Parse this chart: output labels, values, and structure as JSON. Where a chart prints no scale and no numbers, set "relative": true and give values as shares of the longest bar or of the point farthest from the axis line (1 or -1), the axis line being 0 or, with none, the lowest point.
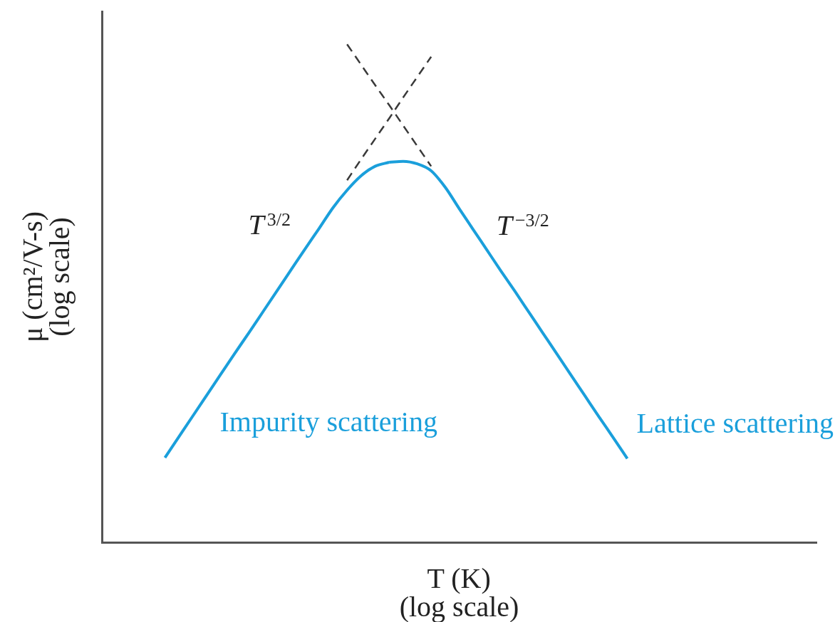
{
  "chart_data": {
    "type": "line",
    "relative": true,
    "tick_labels": false,
    "xlabel": "T (K)\n(log scale)",
    "ylabel": "μ (cm²/V-s)\n(log scale)",
    "annotations": [
      "T$^{3/2}$",
      "T$^{−3/2}$"
    ],
    "categories": [
      null,
      null,
      null,
      null,
      null,
      null,
      null,
      null,
      null,
      null,
      null,
      null,
      null,
      null,
      null,
      null,
      null,
      null,
      null,
      null,
      null,
      null,
      null,
      null,
      null,
      null,
      null,
      null,
      null,
      null,
      null,
      null,
      null,
      null,
      null,
      null,
      null,
      null,
      null,
      null,
      null,
      null,
      null,
      null,
      null,
      null,
      null,
      null,
      null,
      null,
      null
    ],
    "series": [
      {
        "name": "Impurity scattering",
        "color": "#1a9fdb",
        "values": [
          null,
          null,
          null,
          null,
          0.17,
          0.212,
          0.254,
          0.296,
          0.338,
          0.38,
          0.421,
          0.463,
          0.505,
          0.547,
          0.589,
          0.63,
          0.672,
          0.707,
          0.736,
          0.755,
          0.763,
          null,
          null,
          null,
          null,
          null,
          null,
          null,
          null,
          null,
          null,
          null,
          null,
          null,
          null,
          null,
          null,
          null,
          null,
          null,
          null,
          null,
          null,
          null,
          null,
          null,
          null,
          null,
          null,
          null,
          null
        ]
      },
      {
        "name": "Lattice scattering",
        "color": "#1a9fdb",
        "values": [
          null,
          null,
          null,
          null,
          null,
          null,
          null,
          null,
          null,
          null,
          null,
          null,
          null,
          null,
          null,
          null,
          null,
          null,
          null,
          null,
          0.763,
          0.765,
          0.76,
          0.746,
          0.713,
          0.67,
          0.628,
          0.586,
          0.544,
          0.503,
          0.461,
          0.419,
          0.377,
          0.335,
          0.293,
          0.251,
          0.21,
          0.168,
          null,
          null,
          null,
          null,
          null,
          null,
          null,
          null,
          null,
          null,
          null,
          null,
          null
        ]
      },
      {
        "color": "#3a3a3a",
        "line_style": "dashed",
        "values": [
          null,
          null,
          null,
          null,
          null,
          null,
          null,
          null,
          null,
          null,
          null,
          null,
          null,
          null,
          null,
          null,
          null,
          1.0,
          0.959,
          0.918,
          0.878,
          0.837,
          0.796,
          0.755,
          null,
          null,
          null,
          null,
          null,
          null,
          null,
          null,
          null,
          null,
          null,
          null,
          null,
          null,
          null,
          null,
          null,
          null,
          null,
          null,
          null,
          null,
          null,
          null,
          null,
          null,
          null
        ]
      },
      {
        "color": "#3a3a3a",
        "line_style": "dashed",
        "values": [
          null,
          null,
          null,
          null,
          null,
          null,
          null,
          null,
          null,
          null,
          null,
          null,
          null,
          null,
          null,
          null,
          null,
          0.727,
          0.769,
          0.81,
          0.851,
          0.893,
          0.934,
          0.975,
          null,
          null,
          null,
          null,
          null,
          null,
          null,
          null,
          null,
          null,
          null,
          null,
          null,
          null,
          null,
          null,
          null,
          null,
          null,
          null,
          null,
          null,
          null,
          null,
          null,
          null,
          null
        ]
      }
    ]
  }
}
